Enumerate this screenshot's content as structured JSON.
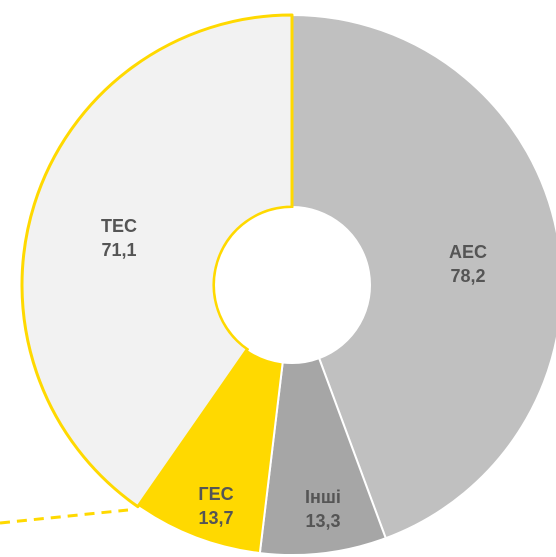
{
  "chart_data": {
    "type": "pie",
    "donut": true,
    "categories": [
      "АЕС",
      "Інші",
      "ГЕС",
      "ТЕС"
    ],
    "values": [
      78.2,
      13.3,
      13.7,
      71.1
    ],
    "value_labels": [
      "78,2",
      "13,3",
      "13,7",
      "71,1"
    ],
    "start_angle_deg": 0,
    "direction": "clockwise",
    "colors": {
      "АЕС": "#c0c0c0",
      "Інші": "#a6a6a6",
      "ГЕС": "#ffd900",
      "ТЕС": "#f2f2f2"
    },
    "stroke_colors": {
      "АЕС": "#ffffff",
      "Інші": "#ffffff",
      "ГЕС": "#ffffff",
      "ТЕС": "#ffd900"
    },
    "callout_line_color": "#ffd900"
  }
}
